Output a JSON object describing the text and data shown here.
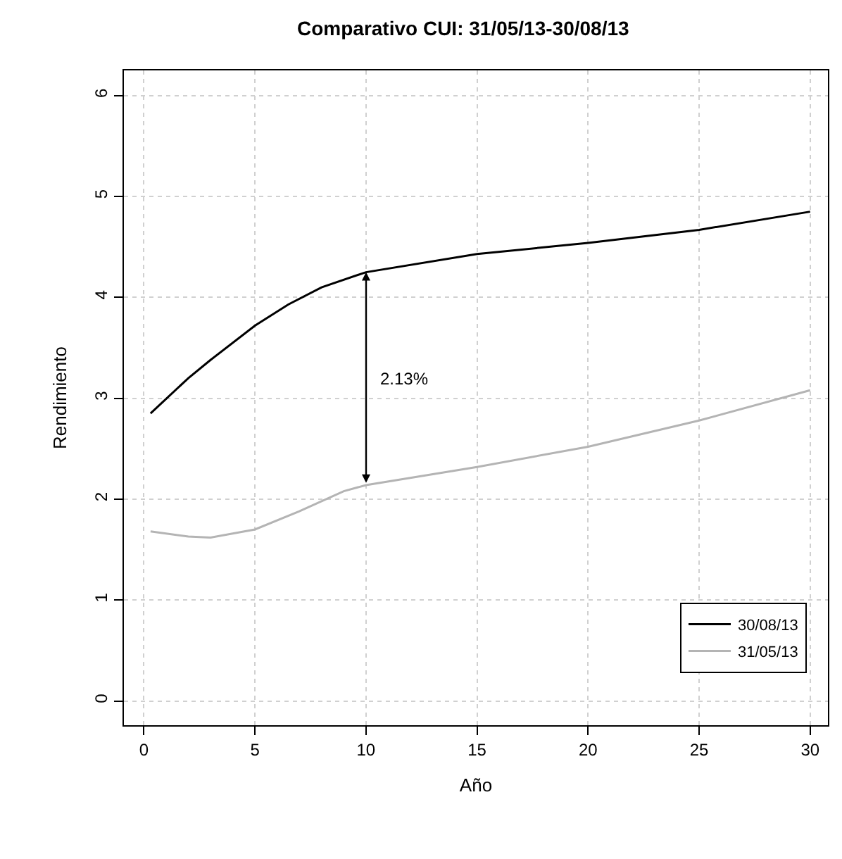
{
  "chart_data": {
    "type": "line",
    "title": "Comparativo CUI: 31/05/13-30/08/13",
    "xlabel": "Año",
    "ylabel": "Rendimiento",
    "xlim": [
      -0.9,
      30.8
    ],
    "xticks": [
      0,
      5,
      10,
      15,
      20,
      25,
      30
    ],
    "ylim": [
      -0.24,
      6.25
    ],
    "yticks": [
      0,
      1,
      2,
      3,
      4,
      5,
      6
    ],
    "grid": true,
    "legend": "bottom right",
    "line_style": "solid",
    "marker": "none",
    "annotations": [
      "2.13%"
    ],
    "series": [
      {
        "name": "30/08/13",
        "color": "#000000",
        "x": [
          0.3,
          2,
          3,
          5,
          6.5,
          8,
          10,
          15,
          20,
          25,
          30
        ],
        "values": [
          2.85,
          3.2,
          3.38,
          3.72,
          3.93,
          4.1,
          4.25,
          4.43,
          4.54,
          4.67,
          4.85
        ]
      },
      {
        "name": "31/05/13",
        "color": "#b4b4b4",
        "x": [
          0.3,
          2,
          3,
          5,
          7,
          9,
          10,
          15,
          20,
          25,
          30
        ],
        "values": [
          1.68,
          1.63,
          1.62,
          1.7,
          1.88,
          2.08,
          2.14,
          2.32,
          2.52,
          2.78,
          3.08
        ]
      }
    ]
  }
}
